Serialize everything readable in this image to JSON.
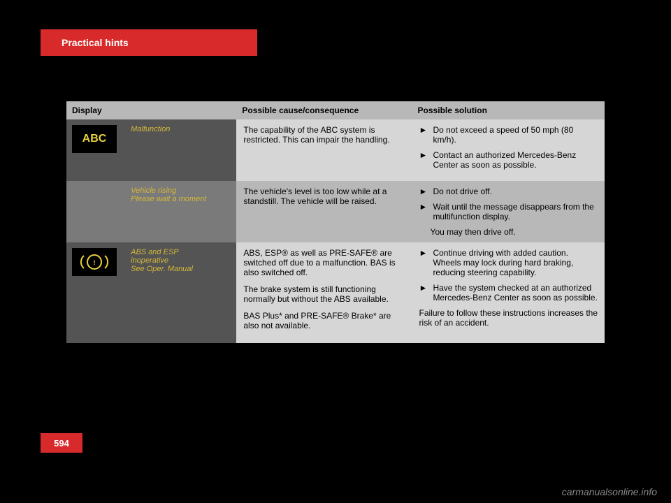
{
  "header": {
    "section_title": "Practical hints"
  },
  "page_number": "594",
  "table": {
    "columns": [
      "Display",
      "Possible cause/consequence",
      "Possible solution"
    ],
    "rows": [
      {
        "icon_text": "ABC",
        "display_text": "Malfunction",
        "cause": "The capability of the ABC system is restricted. This can impair the handling.",
        "solutions": [
          "Do not exceed a speed of 50 mph (80 km/h).",
          "Contact an authorized Mercedes-Benz Center as soon as possible."
        ]
      },
      {
        "display_text": "Vehicle rising\nPlease wait a moment",
        "cause": "The vehicle's level is too low while at a standstill. The vehicle will be raised.",
        "solutions": [
          "Do not drive off.",
          "Wait until the message disappears from the multifunction display."
        ],
        "solution_extra": "You may then drive off."
      },
      {
        "display_text": "ABS and ESP\ninoperative\nSee Oper. Manual",
        "cause_html": "ABS, ESP® as well as PRE-SAFE® are switched off due to a malfunction. BAS is also switched off.|The brake system is still functioning normally but without the ABS available.|BAS Plus* and PRE-SAFE® Brake* are also not available.",
        "solutions": [
          "Continue driving with added caution. Wheels may lock during hard braking, reducing steering capability.",
          "Have the system checked at an authorized Mercedes-Benz Center as soon as possible."
        ],
        "solution_extra": "Failure to follow these instructions increases the risk of an accident."
      }
    ]
  },
  "watermark": "carmanualsonline.info",
  "colors": {
    "background": "#000000",
    "red": "#d82a2a",
    "dark_gray": "#545454",
    "mid_gray": "#7a7a7a",
    "light_gray": "#d6d6d6",
    "header_gray": "#b8b8b8",
    "yellow": "#e8d040"
  }
}
